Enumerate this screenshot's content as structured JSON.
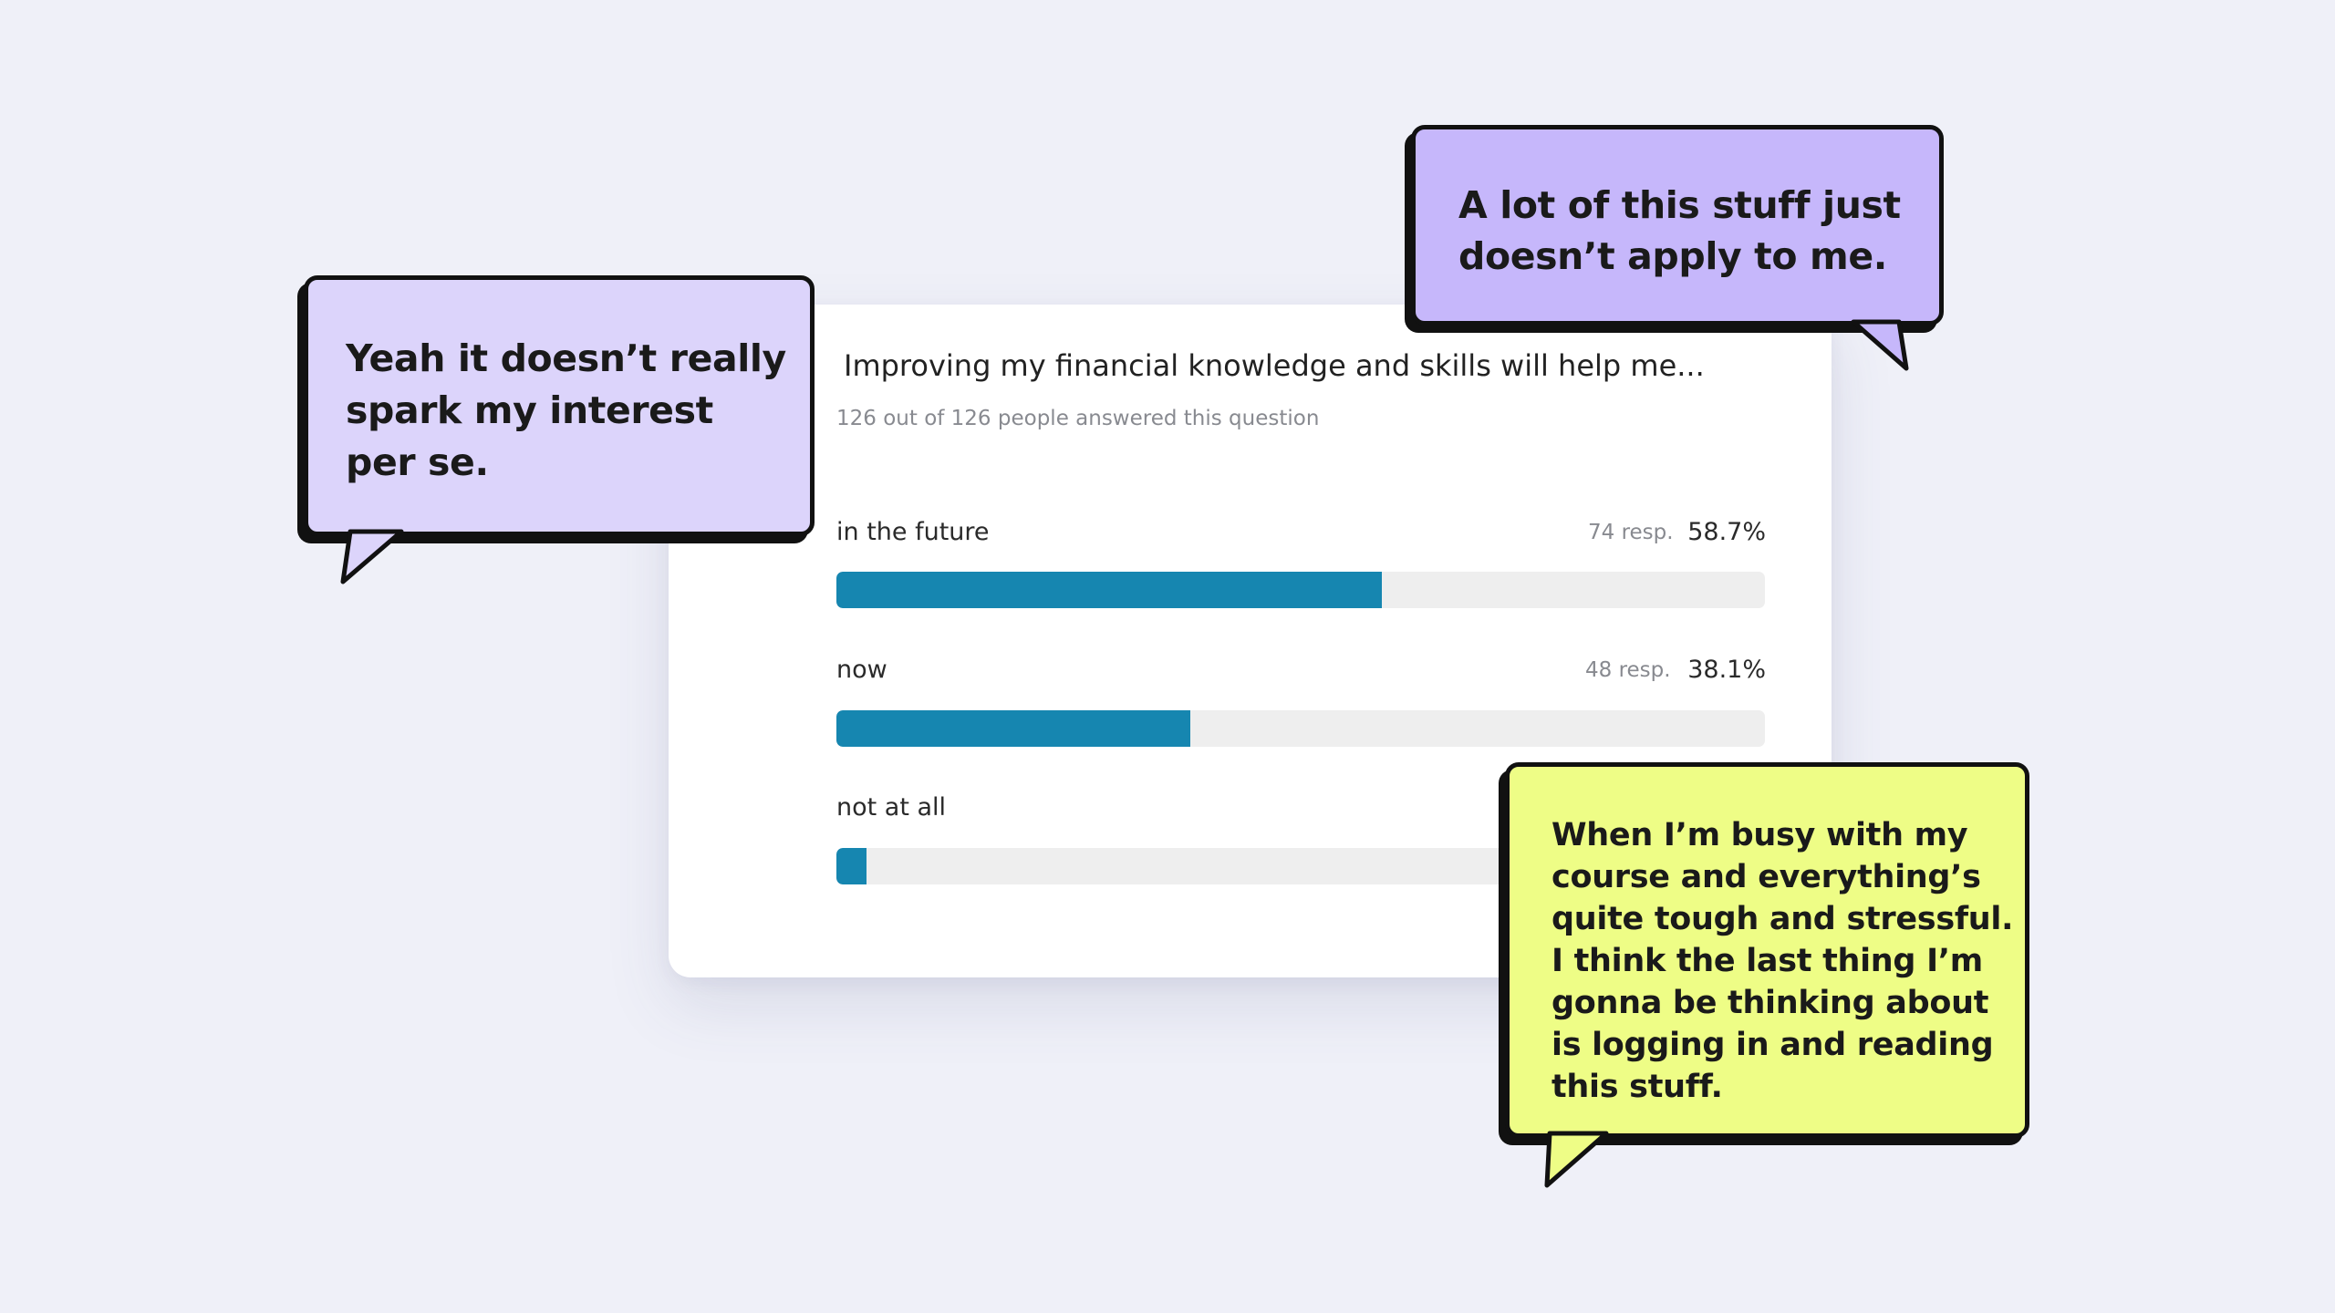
{
  "survey": {
    "question": "Improving my financial knowledge and skills will help me...",
    "answered_text": "126 out of 126 people answered this question",
    "bar_color": "#1686b0",
    "options": [
      {
        "label": "in the future",
        "responses_text": "74 resp.",
        "percent_text": "58.7%",
        "share": 0.587
      },
      {
        "label": "now",
        "responses_text": "48 resp.",
        "percent_text": "38.1%",
        "share": 0.381
      },
      {
        "label": "not at all",
        "share": 0.032
      }
    ]
  },
  "quotes": {
    "left": {
      "text": "Yeah it doesn’t really\nspark my interest\nper se.",
      "color": "#dcd4fb"
    },
    "top_right": {
      "text": "A lot of this stuff just\ndoesn’t apply to me.",
      "color": "#c6b7fb"
    },
    "bottom_right": {
      "text": "When I’m busy with my\ncourse and everything’s\nquite tough and stressful.\nI think the last thing I’m\ngonna be thinking about\nis logging in and reading\nthis stuff.",
      "color": "#eefd86"
    }
  }
}
